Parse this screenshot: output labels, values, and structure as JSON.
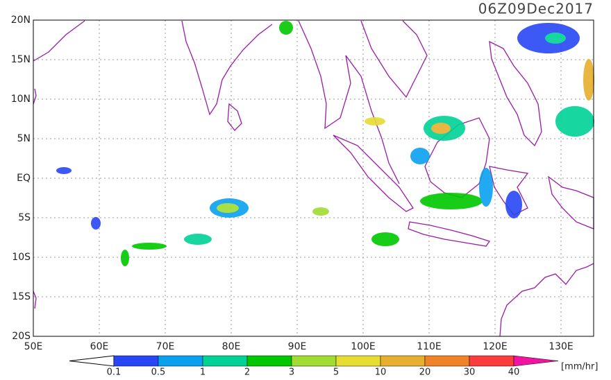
{
  "title": "06Z09Dec2017",
  "lat_labels": [
    "20N",
    "15N",
    "10N",
    "5N",
    "EQ",
    "5S",
    "10S",
    "15S",
    "20S"
  ],
  "lon_labels": [
    "50E",
    "60E",
    "70E",
    "80E",
    "90E",
    "100E",
    "110E",
    "120E",
    "130E"
  ],
  "colorbar": {
    "labels": [
      "0.1",
      "0.5",
      "1",
      "2",
      "3",
      "5",
      "10",
      "20",
      "30",
      "40"
    ],
    "colors": [
      "#2846f5",
      "#0aa0f0",
      "#00d296",
      "#00c800",
      "#a0dc32",
      "#e6dc32",
      "#e6af2d",
      "#f08228",
      "#fa3c3c"
    ],
    "over_color": "#f014a0",
    "unit": "[mm/hr]"
  }
}
